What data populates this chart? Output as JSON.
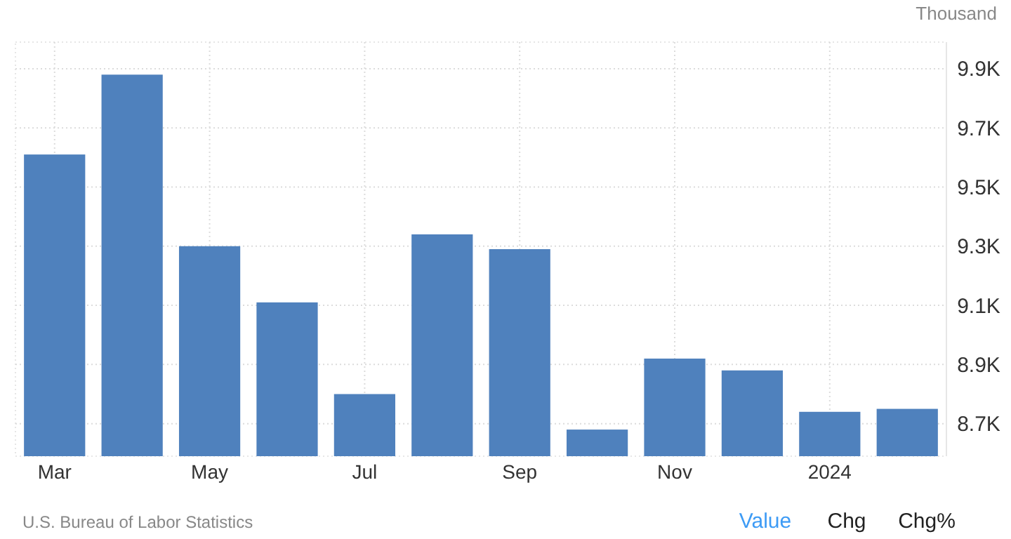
{
  "chart_data": {
    "type": "bar",
    "ylabel": "Thousand",
    "categories": [
      "Mar",
      null,
      "May",
      null,
      "Jul",
      null,
      "Sep",
      null,
      "Nov",
      null,
      "2024",
      null
    ],
    "values": [
      9.61,
      9.88,
      9.3,
      9.11,
      8.8,
      9.34,
      9.29,
      8.68,
      8.92,
      8.88,
      8.74,
      8.75
    ],
    "color": "#4f81bd",
    "ylim": [
      8.59,
      9.99
    ],
    "yticks": [
      {
        "value": 8.7,
        "label": "8.7K"
      },
      {
        "value": 8.9,
        "label": "8.9K"
      },
      {
        "value": 9.1,
        "label": "9.1K"
      },
      {
        "value": 9.3,
        "label": "9.3K"
      },
      {
        "value": 9.5,
        "label": "9.5K"
      },
      {
        "value": 9.7,
        "label": "9.7K"
      },
      {
        "value": 9.9,
        "label": "9.9K"
      }
    ],
    "grid": true,
    "annotations": [
      "U.S. Bureau of Labor Statistics",
      "Value",
      "Chg",
      "Chg%"
    ]
  }
}
